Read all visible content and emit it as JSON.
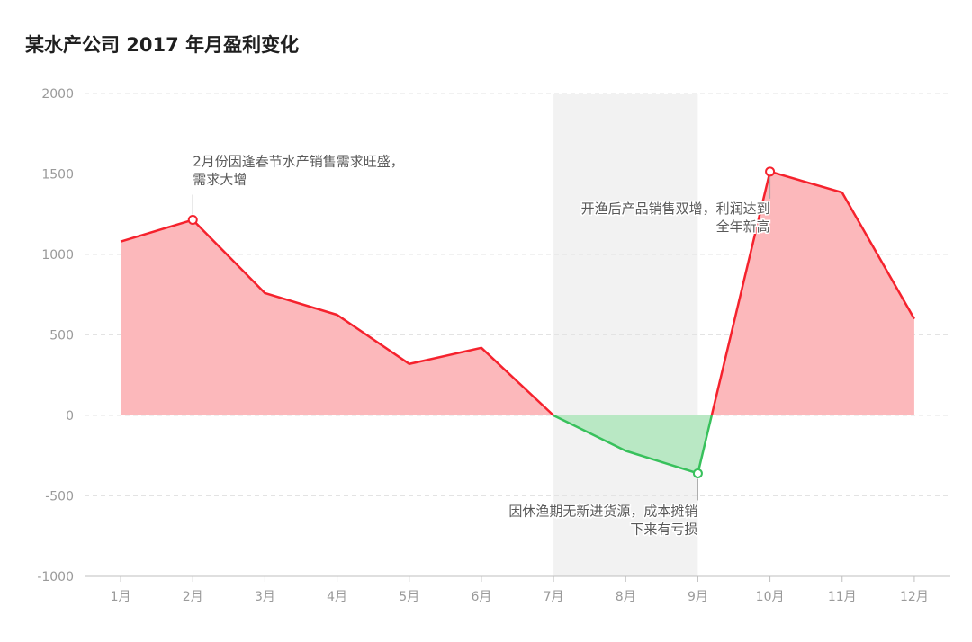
{
  "chart_data": {
    "type": "area",
    "title": "某水产公司 2017 年月盈利变化",
    "xlabel": "",
    "ylabel": "",
    "categories": [
      "1月",
      "2月",
      "3月",
      "4月",
      "5月",
      "6月",
      "7月",
      "8月",
      "9月",
      "10月",
      "11月",
      "12月"
    ],
    "values": [
      1080,
      1215,
      760,
      625,
      320,
      420,
      0,
      -220,
      -360,
      1515,
      1385,
      600
    ],
    "ylim": [
      -1000,
      2000
    ],
    "yticks": [
      "2000",
      "1500",
      "1000",
      "500",
      "0",
      "-500",
      "-1000"
    ],
    "grid": true,
    "colors": {
      "positive_line": "#f5222d",
      "positive_fill": "#fcb8bb",
      "negative_line": "#38c15c",
      "negative_fill": "#b9e8c4",
      "highlight_band": "#f2f2f2"
    },
    "highlight_region": {
      "from": "7月",
      "to": "9月"
    },
    "annotations": [
      {
        "category": "2月",
        "value": 1215,
        "lines": [
          "2月份因逢春节水产销售需求旺盛，",
          "需求大增"
        ]
      },
      {
        "category": "9月",
        "value": -360,
        "lines": [
          "因休渔期无新进货源，成本摊销",
          "下来有亏损"
        ]
      },
      {
        "category": "10月",
        "value": 1515,
        "lines": [
          "开渔后产品销售双增，利润达到",
          "全年新高"
        ]
      }
    ]
  }
}
